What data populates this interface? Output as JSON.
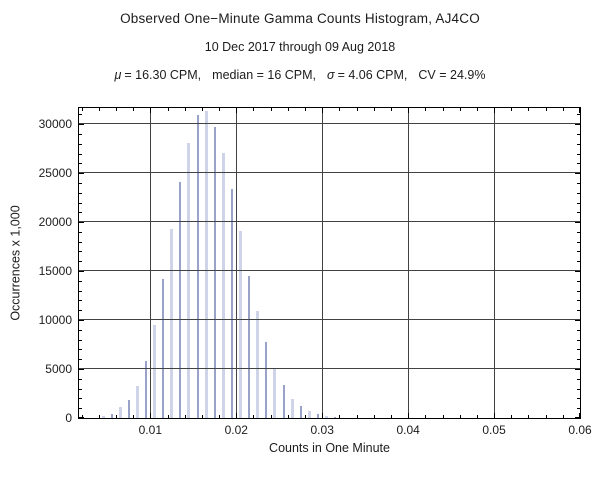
{
  "header": {
    "title": "Observed One−Minute Gamma Counts Histogram, AJ4CO",
    "subtitle": "10 Dec 2017 through 09 Aug 2018"
  },
  "stats": {
    "mu_symbol": "μ",
    "mu_text": "= 16.30 CPM,",
    "median_text": "median = 16 CPM,",
    "sigma_symbol": "σ",
    "sigma_text": "= 4.06 CPM,",
    "cv_text": "CV = 24.9%"
  },
  "chart_data": {
    "type": "bar",
    "title": "Observed One−Minute Gamma Counts Histogram, AJ4CO",
    "subtitle": "10 Dec 2017 through 09 Aug 2018",
    "xlabel": "Counts in One Minute",
    "ylabel": "Occurrences x 1,000",
    "mean_cpm": 16.3,
    "median_cpm": 16,
    "sigma_cpm": 4.06,
    "cv_percent": 24.9,
    "xlim": [
      0.0017,
      0.06
    ],
    "ylim": [
      0,
      31650
    ],
    "grid": true,
    "x_tick_values": [
      0.01,
      0.02,
      0.03,
      0.04,
      0.05,
      0.06
    ],
    "x_tick_labels": [
      "0.01",
      "0.02",
      "0.03",
      "0.04",
      "0.05",
      "0.06"
    ],
    "x_gridline_values": [
      0.01,
      0.02,
      0.03,
      0.04,
      0.05
    ],
    "x_minor_step": 0.002,
    "y_tick_values": [
      0,
      5000,
      10000,
      15000,
      20000,
      25000,
      30000
    ],
    "y_tick_labels": [
      "0",
      "5000",
      "10000",
      "15000",
      "20000",
      "25000",
      "30000"
    ],
    "y_gridline_values": [
      5000,
      10000,
      15000,
      20000,
      25000,
      30000
    ],
    "y_minor_step": 1000,
    "bin_width_cpm": 1,
    "bins": [
      {
        "cpm": 4,
        "x": 0.0045,
        "occurrences": 250
      },
      {
        "cpm": 5,
        "x": 0.0055,
        "occurrences": 450
      },
      {
        "cpm": 6,
        "x": 0.0065,
        "occurrences": 1100
      },
      {
        "cpm": 7,
        "x": 0.0075,
        "occurrences": 1800
      },
      {
        "cpm": 8,
        "x": 0.0085,
        "occurrences": 3250
      },
      {
        "cpm": 9,
        "x": 0.0095,
        "occurrences": 5850
      },
      {
        "cpm": 10,
        "x": 0.0105,
        "occurrences": 9450
      },
      {
        "cpm": 11,
        "x": 0.0115,
        "occurrences": 14200
      },
      {
        "cpm": 12,
        "x": 0.0125,
        "occurrences": 19300
      },
      {
        "cpm": 13,
        "x": 0.0135,
        "occurrences": 24100
      },
      {
        "cpm": 14,
        "x": 0.0145,
        "occurrences": 28100
      },
      {
        "cpm": 15,
        "x": 0.0155,
        "occurrences": 30900
      },
      {
        "cpm": 16,
        "x": 0.0165,
        "occurrences": 31300
      },
      {
        "cpm": 17,
        "x": 0.0175,
        "occurrences": 29700
      },
      {
        "cpm": 18,
        "x": 0.0185,
        "occurrences": 27050
      },
      {
        "cpm": 19,
        "x": 0.0195,
        "occurrences": 23350
      },
      {
        "cpm": 20,
        "x": 0.0205,
        "occurrences": 19050
      },
      {
        "cpm": 21,
        "x": 0.0215,
        "occurrences": 14450
      },
      {
        "cpm": 22,
        "x": 0.0225,
        "occurrences": 10900
      },
      {
        "cpm": 23,
        "x": 0.0235,
        "occurrences": 7800
      },
      {
        "cpm": 24,
        "x": 0.0245,
        "occurrences": 5050
      },
      {
        "cpm": 25,
        "x": 0.0255,
        "occurrences": 3400
      },
      {
        "cpm": 26,
        "x": 0.0265,
        "occurrences": 1950
      },
      {
        "cpm": 27,
        "x": 0.0275,
        "occurrences": 1200
      },
      {
        "cpm": 28,
        "x": 0.0285,
        "occurrences": 750
      },
      {
        "cpm": 29,
        "x": 0.0295,
        "occurrences": 450
      },
      {
        "cpm": 30,
        "x": 0.0305,
        "occurrences": 200
      },
      {
        "cpm": 31,
        "x": 0.0315,
        "occurrences": 100
      }
    ]
  },
  "colors": {
    "bar_light": "#cfd4e8",
    "bar_dark": "#99a2c9",
    "gridline": "#424242",
    "frame": "#000000",
    "background": "#ffffff"
  }
}
